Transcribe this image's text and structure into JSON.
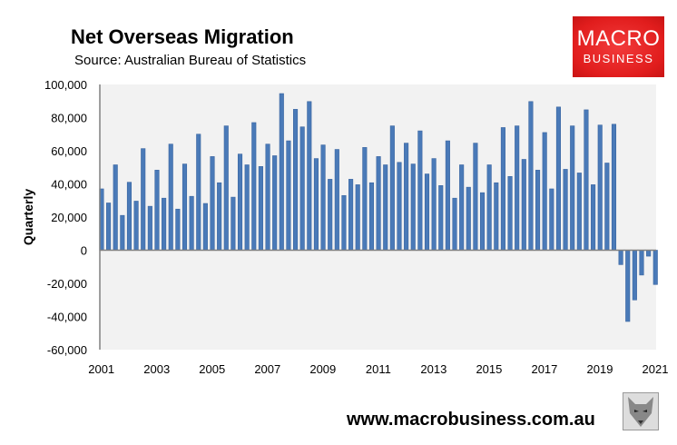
{
  "header": {
    "title": "Net Overseas Migration",
    "source": "Source: Australian Bureau of Statistics"
  },
  "logo": {
    "line1": "MACRO",
    "line2": "BUSINESS",
    "color": "#e11d1d"
  },
  "footer": {
    "url": "www.macrobusiness.com.au",
    "mascot_icon": "wolf-icon"
  },
  "chart_data": {
    "type": "bar",
    "title": "Net Overseas Migration",
    "ylabel": "Quarterly",
    "xlabel": "",
    "ylim": [
      -60000,
      100000
    ],
    "xlim": [
      2001,
      2021
    ],
    "yticks": [
      -60000,
      -40000,
      -20000,
      0,
      20000,
      40000,
      60000,
      80000,
      100000
    ],
    "ytick_labels": [
      "-60,000",
      "-40,000",
      "-20,000",
      "0",
      "20,000",
      "40,000",
      "60,000",
      "80,000",
      "100,000"
    ],
    "xtick_labels": [
      "2001",
      "2003",
      "2005",
      "2007",
      "2009",
      "2011",
      "2013",
      "2015",
      "2017",
      "2019",
      "2021"
    ],
    "grid": false,
    "bar_color": "#4a7ab8",
    "x_start": 2001,
    "x_step": 0.25,
    "values": [
      37000,
      28500,
      51500,
      21000,
      41000,
      29600,
      61300,
      26500,
      48300,
      31400,
      64000,
      24800,
      52000,
      32500,
      70000,
      28200,
      56500,
      40700,
      75000,
      32000,
      58000,
      51500,
      77000,
      50500,
      64000,
      57000,
      94500,
      66000,
      85000,
      74400,
      89700,
      55300,
      63500,
      42800,
      60800,
      33000,
      42800,
      39500,
      62000,
      40700,
      56500,
      51500,
      75000,
      53000,
      64600,
      52000,
      72000,
      46000,
      55300,
      39000,
      66000,
      31400,
      51500,
      38000,
      64600,
      34700,
      51500,
      40700,
      74000,
      44500,
      75000,
      54800,
      89700,
      48300,
      71000,
      37000,
      86400,
      48800,
      75000,
      46600,
      84700,
      39500,
      75500,
      52600,
      76000,
      -8700,
      -43000,
      -30000,
      -15000,
      -3600,
      -20700
    ]
  }
}
